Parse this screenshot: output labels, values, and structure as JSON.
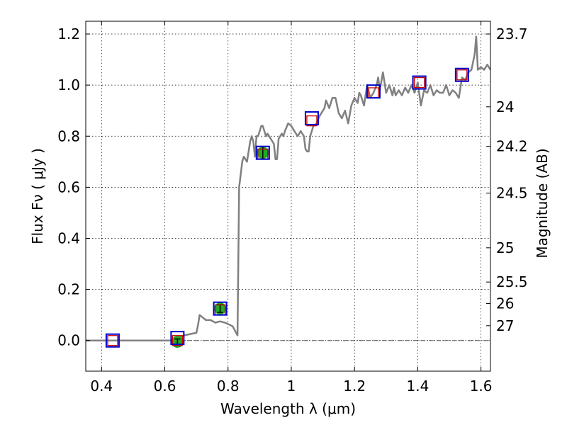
{
  "chart_data": {
    "type": "line",
    "xlabel": "Wavelength  λ (μm)",
    "ylabel": "Flux  Fν ( μJy )",
    "y2label": "Magnitude (AB)",
    "xlim": [
      0.35,
      1.63
    ],
    "ylim": [
      -0.12,
      1.25
    ],
    "grid": true,
    "x_ticks": [
      0.4,
      0.6,
      0.8,
      1.0,
      1.2,
      1.4,
      1.6
    ],
    "x_tick_labels": [
      "0.4",
      "0.6",
      "0.8",
      "1",
      "1.2",
      "1.4",
      "1.6"
    ],
    "y_ticks": [
      0.0,
      0.2,
      0.4,
      0.6,
      0.8,
      1.0,
      1.2
    ],
    "y_tick_labels": [
      "0.0",
      "0.2",
      "0.4",
      "0.6",
      "0.8",
      "1.0",
      "1.2"
    ],
    "magnitude_ticks": [
      {
        "label": "23.7",
        "flux": 1.2
      },
      {
        "label": "24",
        "flux": 0.915
      },
      {
        "label": "24.2",
        "flux": 0.76
      },
      {
        "label": "24.5",
        "flux": 0.577
      },
      {
        "label": "25",
        "flux": 0.363
      },
      {
        "label": "25.5",
        "flux": 0.229
      },
      {
        "label": "26",
        "flux": 0.145
      },
      {
        "label": "27",
        "flux": 0.058
      }
    ],
    "model_spectrum": {
      "color": "#808080",
      "x": [
        0.35,
        0.62,
        0.66,
        0.7,
        0.705,
        0.71,
        0.72,
        0.73,
        0.745,
        0.76,
        0.775,
        0.79,
        0.8,
        0.815,
        0.83,
        0.835,
        0.84,
        0.845,
        0.85,
        0.855,
        0.86,
        0.87,
        0.875,
        0.88,
        0.885,
        0.89,
        0.895,
        0.9,
        0.905,
        0.91,
        0.915,
        0.92,
        0.925,
        0.93,
        0.94,
        0.945,
        0.95,
        0.955,
        0.96,
        0.965,
        0.97,
        0.975,
        0.98,
        0.99,
        1.0,
        1.01,
        1.02,
        1.03,
        1.04,
        1.045,
        1.05,
        1.055,
        1.06,
        1.07,
        1.08,
        1.09,
        1.1,
        1.105,
        1.11,
        1.12,
        1.13,
        1.14,
        1.15,
        1.16,
        1.17,
        1.18,
        1.19,
        1.2,
        1.21,
        1.215,
        1.22,
        1.23,
        1.24,
        1.25,
        1.26,
        1.27,
        1.275,
        1.28,
        1.29,
        1.3,
        1.31,
        1.32,
        1.325,
        1.33,
        1.34,
        1.35,
        1.36,
        1.37,
        1.38,
        1.39,
        1.4,
        1.41,
        1.42,
        1.43,
        1.44,
        1.45,
        1.46,
        1.47,
        1.48,
        1.49,
        1.5,
        1.51,
        1.52,
        1.53,
        1.54,
        1.55,
        1.56,
        1.57,
        1.58,
        1.585,
        1.59,
        1.6,
        1.61,
        1.62,
        1.63
      ],
      "y": [
        0.0,
        0.0,
        0.02,
        0.03,
        0.06,
        0.1,
        0.09,
        0.08,
        0.08,
        0.07,
        0.075,
        0.07,
        0.065,
        0.055,
        0.02,
        0.6,
        0.65,
        0.7,
        0.72,
        0.71,
        0.7,
        0.78,
        0.8,
        0.78,
        0.72,
        0.8,
        0.8,
        0.82,
        0.84,
        0.84,
        0.82,
        0.8,
        0.81,
        0.8,
        0.78,
        0.77,
        0.71,
        0.71,
        0.79,
        0.8,
        0.81,
        0.8,
        0.82,
        0.85,
        0.84,
        0.82,
        0.8,
        0.82,
        0.8,
        0.75,
        0.74,
        0.74,
        0.8,
        0.84,
        0.85,
        0.88,
        0.9,
        0.91,
        0.94,
        0.91,
        0.95,
        0.95,
        0.89,
        0.87,
        0.9,
        0.85,
        0.92,
        0.95,
        0.93,
        0.97,
        0.96,
        0.92,
        1.0,
        0.95,
        0.97,
        1.0,
        1.03,
        0.98,
        1.05,
        0.97,
        1.0,
        0.96,
        0.99,
        0.96,
        0.98,
        0.96,
        0.99,
        0.97,
        1.0,
        0.97,
        1.01,
        0.92,
        0.98,
        0.97,
        1.0,
        0.96,
        0.98,
        0.97,
        0.97,
        1.0,
        0.96,
        0.98,
        0.97,
        0.95,
        1.03,
        1.02,
        1.05,
        1.06,
        1.12,
        1.19,
        1.06,
        1.07,
        1.06,
        1.08,
        1.06
      ]
    },
    "model_photometry": {
      "marker": "open-square",
      "color": "#cc0000",
      "x": [
        0.435,
        0.64,
        0.775,
        0.91,
        1.065,
        1.26,
        1.405,
        1.54
      ],
      "y": [
        0.0,
        0.0,
        0.12,
        0.73,
        0.86,
        0.97,
        1.01,
        1.04
      ]
    },
    "filter_bands": {
      "marker": "open-square",
      "color": "#0000cc",
      "x": [
        0.435,
        0.64,
        0.775,
        0.91,
        1.065,
        1.26,
        1.405,
        1.54
      ],
      "y": [
        0.0,
        0.01,
        0.125,
        0.735,
        0.87,
        0.975,
        1.01,
        1.04
      ]
    },
    "observed": {
      "marker": "filled-circle",
      "color": "#22aa22",
      "x": [
        0.64,
        0.775,
        0.91
      ],
      "y": [
        -0.005,
        0.125,
        0.735
      ],
      "err": [
        0.01,
        0.015,
        0.025
      ]
    },
    "zero_line_color": "#555555"
  }
}
